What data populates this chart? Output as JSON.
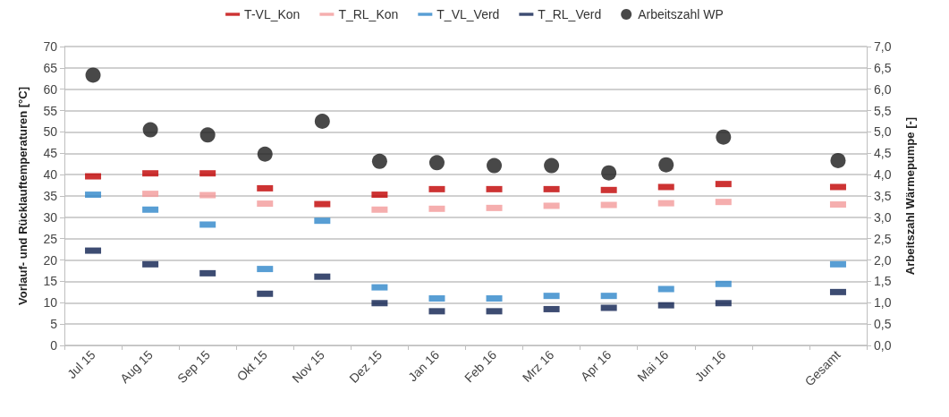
{
  "chart_data": {
    "type": "scatter",
    "categories": [
      "Jul 15",
      "Aug 15",
      "Sep 15",
      "Okt 15",
      "Nov 15",
      "Dez 15",
      "Jan 16",
      "Feb 16",
      "Mrz 16",
      "Apr 16",
      "Mai 16",
      "Jun 16",
      null,
      "Gesamt"
    ],
    "ylabel": "Vorlauf- und Rücklauftemperaturen [°C]",
    "y2label": "Arbeitszahl Wärmepumpe [-]",
    "series": [
      {
        "name": "T-VL_Kon",
        "color": "#c00000",
        "values": [
          39.6,
          40.3,
          40.3,
          36.8,
          33.1,
          35.3,
          36.6,
          36.6,
          36.6,
          36.4,
          37.1,
          37.8,
          null,
          37.1
        ]
      },
      {
        "name": "T_RL_Kon",
        "color": "#f29a9a",
        "values": [
          null,
          35.5,
          35.2,
          33.2,
          null,
          31.8,
          32.0,
          32.2,
          32.7,
          32.9,
          33.3,
          33.6,
          null,
          33.0
        ]
      },
      {
        "name": "T_VL_Verd",
        "color": "#2e86c9",
        "values": [
          35.3,
          31.8,
          28.3,
          17.9,
          29.2,
          13.6,
          11.0,
          11.0,
          11.6,
          11.6,
          13.2,
          14.4,
          null,
          19.0
        ]
      },
      {
        "name": "T_RL_Verd",
        "color": "#0d1f4f",
        "values": [
          22.2,
          19.0,
          16.9,
          12.1,
          16.1,
          9.9,
          8.0,
          8.0,
          8.5,
          8.8,
          9.4,
          9.9,
          null,
          12.5
        ]
      },
      {
        "name": "Arbeitszahl WP",
        "color": "#1a1a1a",
        "axis": "y2",
        "marker": "circle",
        "values": [
          6.33,
          5.05,
          4.93,
          4.48,
          5.25,
          4.31,
          4.28,
          4.21,
          4.21,
          4.04,
          4.23,
          4.88,
          null,
          4.33
        ]
      }
    ],
    "ylim": [
      0,
      70
    ],
    "yticks": [
      0,
      5,
      10,
      15,
      20,
      25,
      30,
      35,
      40,
      45,
      50,
      55,
      60,
      65,
      70
    ],
    "y2lim": [
      0,
      7
    ],
    "y2ticks": [
      {
        "value": 0,
        "label": "0,0"
      },
      {
        "value": 0.5,
        "label": "0,5"
      },
      {
        "value": 1,
        "label": "1,0"
      },
      {
        "value": 1.5,
        "label": "1,5"
      },
      {
        "value": 2,
        "label": "2,0"
      },
      {
        "value": 2.5,
        "label": "2,5"
      },
      {
        "value": 3,
        "label": "3,0"
      },
      {
        "value": 3.5,
        "label": "3,5"
      },
      {
        "value": 4,
        "label": "4,0"
      },
      {
        "value": 4.5,
        "label": "4,5"
      },
      {
        "value": 5,
        "label": "5,0"
      },
      {
        "value": 5.5,
        "label": "5,5"
      },
      {
        "value": 6,
        "label": "6,0"
      },
      {
        "value": 6.5,
        "label": "6,5"
      },
      {
        "value": 7,
        "label": "7,0"
      }
    ],
    "grid": "y",
    "legend": "top"
  }
}
